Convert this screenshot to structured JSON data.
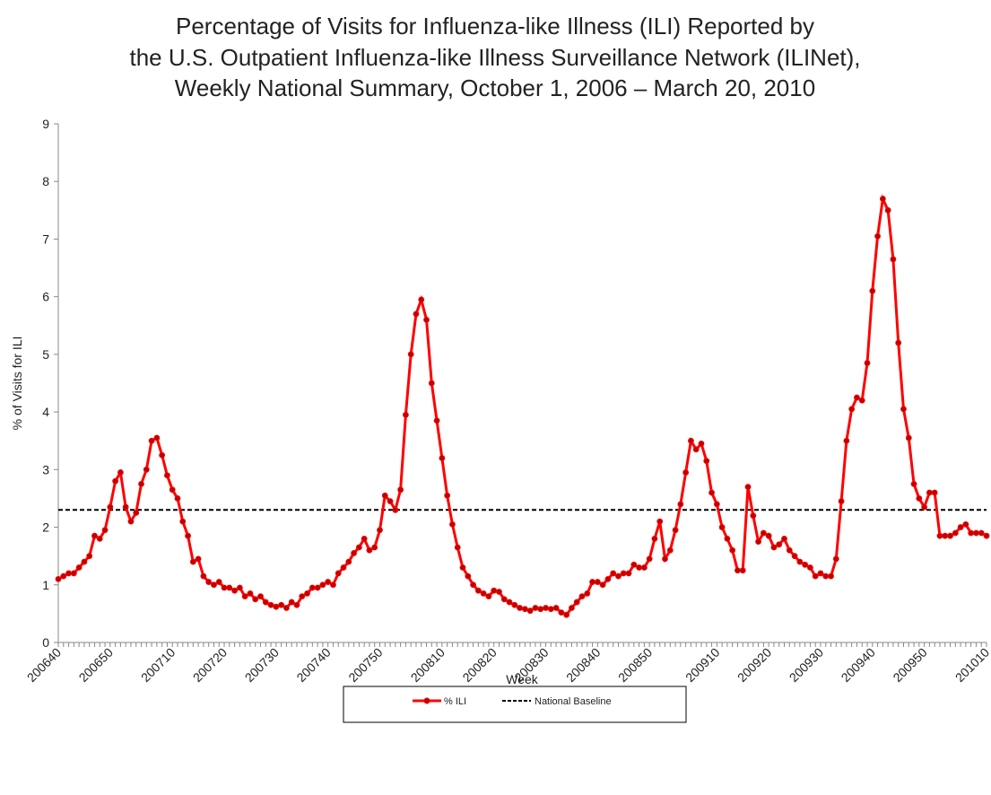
{
  "chart_data": {
    "type": "line",
    "title": [
      "Percentage of Visits for Influenza-like Illness (ILI) Reported by",
      "the U.S. Outpatient Influenza-like Illness Surveillance Network (ILINet),",
      "Weekly National Summary, October 1, 2006 – March 20, 2010"
    ],
    "x_label": "Week",
    "y_label": "% of Visits for ILI",
    "categories": [
      "200640",
      null,
      null,
      null,
      null,
      null,
      null,
      null,
      null,
      null,
      "200650",
      null,
      null,
      null,
      null,
      null,
      null,
      null,
      null,
      null,
      null,
      null,
      "200710",
      null,
      null,
      null,
      null,
      null,
      null,
      null,
      null,
      null,
      "200720",
      null,
      null,
      null,
      null,
      null,
      null,
      null,
      null,
      null,
      "200730",
      null,
      null,
      null,
      null,
      null,
      null,
      null,
      null,
      null,
      "200740",
      null,
      null,
      null,
      null,
      null,
      null,
      null,
      null,
      null,
      "200750",
      null,
      null,
      null,
      null,
      null,
      null,
      null,
      null,
      null,
      null,
      null,
      "200810",
      null,
      null,
      null,
      null,
      null,
      null,
      null,
      null,
      null,
      "200820",
      null,
      null,
      null,
      null,
      null,
      null,
      null,
      null,
      null,
      "200830",
      null,
      null,
      null,
      null,
      null,
      null,
      null,
      null,
      null,
      "200840",
      null,
      null,
      null,
      null,
      null,
      null,
      null,
      null,
      null,
      "200850",
      null,
      null,
      null,
      null,
      null,
      null,
      null,
      null,
      null,
      null,
      null,
      null,
      "200910",
      null,
      null,
      null,
      null,
      null,
      null,
      null,
      null,
      null,
      "200920",
      null,
      null,
      null,
      null,
      null,
      null,
      null,
      null,
      null,
      "200930",
      null,
      null,
      null,
      null,
      null,
      null,
      null,
      null,
      null,
      "200940",
      null,
      null,
      null,
      null,
      null,
      null,
      null,
      null,
      null,
      "200950",
      null,
      null,
      null,
      null,
      null,
      null,
      null,
      null,
      null,
      null,
      null,
      "201010"
    ],
    "series": [
      {
        "name": "% ILI",
        "color": "#ff0000",
        "marker_color": "#c00000",
        "values": [
          1.1,
          1.15,
          1.2,
          1.2,
          1.3,
          1.4,
          1.5,
          1.85,
          1.8,
          1.95,
          2.35,
          2.8,
          2.95,
          2.35,
          2.1,
          2.25,
          2.75,
          3.0,
          3.5,
          3.55,
          3.25,
          2.9,
          2.65,
          2.5,
          2.1,
          1.85,
          1.4,
          1.45,
          1.15,
          1.05,
          1.0,
          1.05,
          0.95,
          0.95,
          0.9,
          0.95,
          0.8,
          0.85,
          0.75,
          0.8,
          0.7,
          0.65,
          0.62,
          0.65,
          0.6,
          0.7,
          0.65,
          0.8,
          0.85,
          0.95,
          0.95,
          1.0,
          1.05,
          1.0,
          1.2,
          1.3,
          1.4,
          1.55,
          1.65,
          1.8,
          1.6,
          1.65,
          1.95,
          2.55,
          2.45,
          2.3,
          2.65,
          3.95,
          5.0,
          5.7,
          5.95,
          5.6,
          4.5,
          3.85,
          3.2,
          2.55,
          2.05,
          1.65,
          1.3,
          1.15,
          1.0,
          0.9,
          0.85,
          0.8,
          0.9,
          0.88,
          0.75,
          0.7,
          0.65,
          0.6,
          0.58,
          0.55,
          0.6,
          0.58,
          0.6,
          0.58,
          0.6,
          0.52,
          0.48,
          0.6,
          0.7,
          0.8,
          0.85,
          1.05,
          1.05,
          1.0,
          1.1,
          1.2,
          1.15,
          1.2,
          1.2,
          1.35,
          1.3,
          1.3,
          1.45,
          1.8,
          2.1,
          1.45,
          1.6,
          1.95,
          2.4,
          2.95,
          3.5,
          3.35,
          3.45,
          3.15,
          2.6,
          2.4,
          2.0,
          1.8,
          1.6,
          1.25,
          1.25,
          2.7,
          2.2,
          1.75,
          1.9,
          1.85,
          1.65,
          1.7,
          1.8,
          1.6,
          1.5,
          1.4,
          1.35,
          1.3,
          1.15,
          1.2,
          1.15,
          1.15,
          1.45,
          2.45,
          3.5,
          4.05,
          4.25,
          4.2,
          4.85,
          6.1,
          7.05,
          7.7,
          7.5,
          6.65,
          5.2,
          4.05,
          3.55,
          2.75,
          2.5,
          2.35,
          2.6,
          2.6,
          1.85,
          1.85,
          1.85,
          1.9,
          2.0,
          2.05,
          1.9,
          1.9,
          1.9,
          1.85
        ]
      }
    ],
    "baseline": {
      "name": "National Baseline",
      "value": 2.3,
      "color": "#000000"
    },
    "ylim": [
      0,
      9
    ],
    "yticks": [
      0,
      1,
      2,
      3,
      4,
      5,
      6,
      7,
      8,
      9
    ],
    "grid": false
  }
}
